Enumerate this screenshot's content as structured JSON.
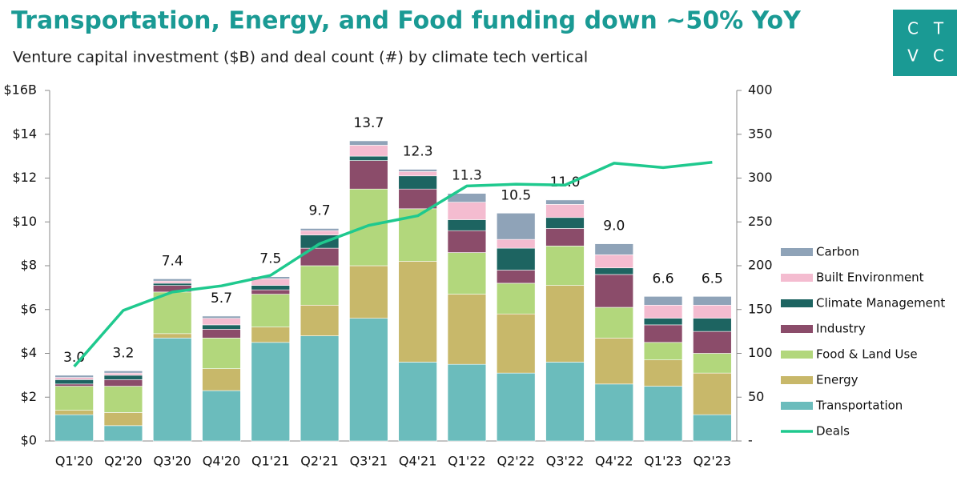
{
  "chart_data": {
    "type": "bar",
    "stacked": true,
    "title": "Transportation, Energy, and Food funding down ~50% YoY",
    "subtitle": "Venture capital investment ($B) and deal count (#) by climate tech vertical",
    "logo": [
      "C",
      "T",
      "V",
      "C"
    ],
    "categories": [
      "Q1'20",
      "Q2'20",
      "Q3'20",
      "Q4'20",
      "Q1'21",
      "Q2'21",
      "Q3'21",
      "Q4'21",
      "Q1'22",
      "Q2'22",
      "Q3'22",
      "Q4'22",
      "Q1'23",
      "Q2'23"
    ],
    "series": [
      {
        "name": "Transportation",
        "color": "#6bbcbc",
        "values": [
          1.2,
          0.7,
          4.7,
          2.3,
          4.5,
          4.8,
          5.6,
          3.6,
          3.5,
          3.1,
          3.6,
          2.6,
          2.5,
          1.2
        ]
      },
      {
        "name": "Energy",
        "color": "#c8b86a",
        "values": [
          0.2,
          0.6,
          0.2,
          1.0,
          0.7,
          1.4,
          2.4,
          4.6,
          3.2,
          2.7,
          3.5,
          2.1,
          1.2,
          1.9
        ]
      },
      {
        "name": "Food & Land Use",
        "color": "#b2d77c",
        "values": [
          1.1,
          1.2,
          1.9,
          1.4,
          1.5,
          1.8,
          3.5,
          2.4,
          1.9,
          1.4,
          1.8,
          1.4,
          0.8,
          0.9
        ]
      },
      {
        "name": "Industry",
        "color": "#8b4c6a",
        "values": [
          0.1,
          0.3,
          0.3,
          0.4,
          0.2,
          0.8,
          1.3,
          0.9,
          1.0,
          0.6,
          0.8,
          1.5,
          0.8,
          1.0
        ]
      },
      {
        "name": "Climate Management",
        "color": "#1d6461",
        "values": [
          0.2,
          0.2,
          0.1,
          0.2,
          0.2,
          0.6,
          0.2,
          0.6,
          0.5,
          1.0,
          0.5,
          0.3,
          0.3,
          0.6
        ]
      },
      {
        "name": "Built Environment",
        "color": "#f4bcd0",
        "values": [
          0.1,
          0.1,
          0.1,
          0.3,
          0.3,
          0.2,
          0.5,
          0.2,
          0.8,
          0.4,
          0.6,
          0.6,
          0.6,
          0.6
        ]
      },
      {
        "name": "Carbon",
        "color": "#8fa3b8",
        "values": [
          0.1,
          0.1,
          0.1,
          0.1,
          0.1,
          0.1,
          0.2,
          0.1,
          0.4,
          1.2,
          0.2,
          0.5,
          0.4,
          0.4
        ]
      },
      {
        "name": "Deals",
        "type": "line",
        "axis": "y2",
        "color": "#1fc98e",
        "values": [
          85,
          149,
          170,
          177,
          189,
          225,
          246,
          257,
          291,
          293,
          292,
          317,
          312,
          318
        ]
      }
    ],
    "total_labels": [
      "3.0",
      "3.2",
      "7.4",
      "5.7",
      "7.5",
      "9.7",
      "13.7",
      "12.3",
      "11.3",
      "10.5",
      "11.0",
      "9.0",
      "6.6",
      "6.5"
    ],
    "ylim": [
      0,
      16
    ],
    "yticks": [
      {
        "value": 0,
        "label": "$0"
      },
      {
        "value": 2,
        "label": "$2"
      },
      {
        "value": 4,
        "label": "$4"
      },
      {
        "value": 6,
        "label": "$6"
      },
      {
        "value": 8,
        "label": "$8"
      },
      {
        "value": 10,
        "label": "$10"
      },
      {
        "value": 12,
        "label": "$12"
      },
      {
        "value": 14,
        "label": "$14"
      },
      {
        "value": 16,
        "label": "$16B"
      }
    ],
    "y2lim": [
      0,
      400
    ],
    "y2ticks": [
      {
        "value": 0,
        "label": "-"
      },
      50,
      100,
      150,
      200,
      250,
      300,
      350,
      400
    ],
    "legend": "right",
    "grid": false
  }
}
